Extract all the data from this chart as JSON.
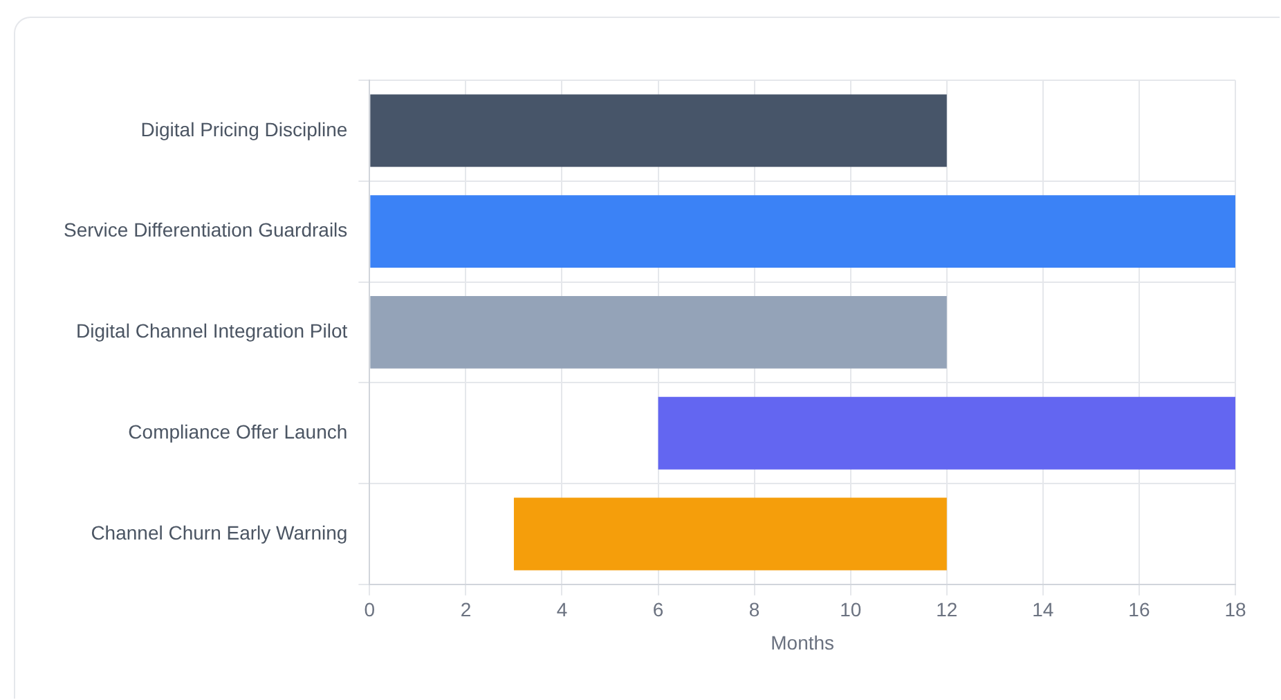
{
  "chart_data": {
    "type": "bar",
    "orientation": "horizontal",
    "xlabel": "Months",
    "categories": [
      "Digital Pricing Discipline",
      "Service Differentiation Guardrails",
      "Digital Channel Integration Pilot",
      "Compliance Offer Launch",
      "Channel Churn Early Warning"
    ],
    "base": [
      0,
      0,
      0,
      6,
      3
    ],
    "values": [
      12,
      18,
      12,
      12,
      9
    ],
    "colors": [
      "#475569",
      "#3b82f6",
      "#94a3b8",
      "#6366f1",
      "#f59e0b"
    ],
    "xlim": [
      0,
      18
    ],
    "xticks": [
      0,
      2,
      4,
      6,
      8,
      10,
      12,
      14,
      16,
      18
    ],
    "grid": true
  }
}
